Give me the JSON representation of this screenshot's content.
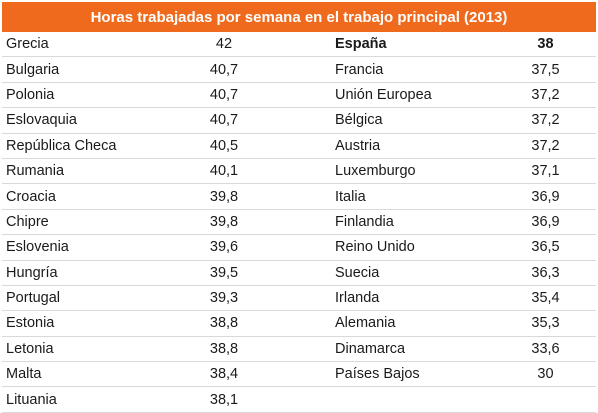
{
  "chart_data": {
    "type": "table",
    "title": "Horas trabajadas por semana en el trabajo principal (2013)",
    "columns": [
      {
        "rows": [
          {
            "country": "Grecia",
            "value": "42"
          },
          {
            "country": "Bulgaria",
            "value": "40,7"
          },
          {
            "country": "Polonia",
            "value": "40,7"
          },
          {
            "country": "Eslovaquia",
            "value": "40,7"
          },
          {
            "country": "República Checa",
            "value": "40,5"
          },
          {
            "country": "Rumania",
            "value": "40,1"
          },
          {
            "country": "Croacia",
            "value": "39,8"
          },
          {
            "country": "Chipre",
            "value": "39,8"
          },
          {
            "country": "Eslovenia",
            "value": "39,6"
          },
          {
            "country": "Hungría",
            "value": "39,5"
          },
          {
            "country": "Portugal",
            "value": "39,3"
          },
          {
            "country": "Estonia",
            "value": "38,8"
          },
          {
            "country": "Letonia",
            "value": "38,8"
          },
          {
            "country": "Malta",
            "value": "38,4"
          },
          {
            "country": "Lituania",
            "value": "38,1"
          }
        ]
      },
      {
        "rows": [
          {
            "country": "España",
            "value": "38"
          },
          {
            "country": "Francia",
            "value": "37,5"
          },
          {
            "country": "Unión Europea",
            "value": "37,2"
          },
          {
            "country": "Bélgica",
            "value": "37,2"
          },
          {
            "country": "Austria",
            "value": "37,2"
          },
          {
            "country": "Luxemburgo",
            "value": "37,1"
          },
          {
            "country": "Italia",
            "value": "36,9"
          },
          {
            "country": "Finlandia",
            "value": "36,9"
          },
          {
            "country": "Reino Unido",
            "value": "36,5"
          },
          {
            "country": "Suecia",
            "value": "36,3"
          },
          {
            "country": "Irlanda",
            "value": "35,4"
          },
          {
            "country": "Alemania",
            "value": "35,3"
          },
          {
            "country": "Dinamarca",
            "value": "33,6"
          },
          {
            "country": "Países Bajos",
            "value": "30"
          },
          {
            "country": "",
            "value": ""
          }
        ]
      }
    ],
    "colors": {
      "header_bg": "#ef6a1c",
      "header_text": "#ffffff",
      "row_line": "#d9d9d9"
    }
  }
}
